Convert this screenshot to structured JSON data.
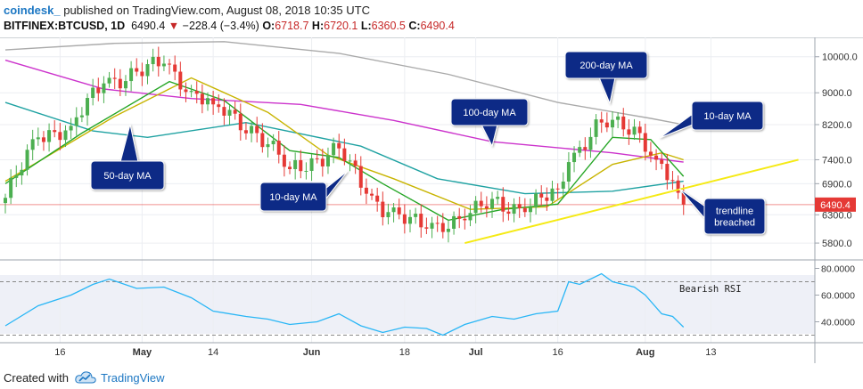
{
  "header": {
    "brand": "coindesk_",
    "published": "published on TradingView.com, August 08, 2018 10:35 UTC",
    "symbol": "BITFINEX:BTCUSD, 1D",
    "last": "6490.4",
    "change": "−228.4 (−3.4%)",
    "o_label": "O:",
    "o_value": "6718.7",
    "h_label": "H:",
    "h_value": "6720.1",
    "l_label": "L:",
    "l_value": "6360.5",
    "c_label": "C:",
    "c_value": "6490.4"
  },
  "footer": {
    "created_with": "Created with",
    "tradingview": "TradingView"
  },
  "colors": {
    "up": "#4caf50",
    "down": "#e53935",
    "ma10": "#26a626",
    "ma20": "#c8b400",
    "ma50": "#1fa2a2",
    "ma100": "#cc33cc",
    "ma200": "#aaaaaa",
    "trendline": "#f5ea14",
    "rsi": "#29b6f6",
    "annotation": "#0d2a86",
    "price_tag": "#e53935"
  },
  "chart_data": [
    {
      "type": "candlestick",
      "symbol": "BITFINEX:BTCUSD",
      "interval": "1D",
      "y_scale": "log",
      "ylim": [
        5550,
        10500
      ],
      "y_ticks": [
        "10000.0",
        "9000.0",
        "8200.0",
        "7400.0",
        "6900.0",
        "6300.0",
        "5800.0"
      ],
      "x_ticks": [
        "16",
        "May",
        "14",
        "Jun",
        "18",
        "Jul",
        "16",
        "Aug",
        "13"
      ],
      "last_price_label": "6490.4",
      "key_points": [
        {
          "date": "2018-04-06",
          "close": 6620
        },
        {
          "date": "2018-04-12",
          "close": 7900
        },
        {
          "date": "2018-04-18",
          "close": 8170
        },
        {
          "date": "2018-04-24",
          "close": 9250
        },
        {
          "date": "2018-05-05",
          "close": 9800
        },
        {
          "date": "2018-05-10",
          "close": 9050
        },
        {
          "date": "2018-05-14",
          "close": 8700
        },
        {
          "date": "2018-05-22",
          "close": 8000
        },
        {
          "date": "2018-05-28",
          "close": 7200
        },
        {
          "date": "2018-06-04",
          "close": 7500
        },
        {
          "date": "2018-06-06",
          "close": 7650
        },
        {
          "date": "2018-06-11",
          "close": 6700
        },
        {
          "date": "2018-06-15",
          "close": 6350
        },
        {
          "date": "2018-06-22",
          "close": 6050
        },
        {
          "date": "2018-06-24",
          "close": 6150
        },
        {
          "date": "2018-06-29",
          "close": 6200
        },
        {
          "date": "2018-07-04",
          "close": 6600
        },
        {
          "date": "2018-07-10",
          "close": 6350
        },
        {
          "date": "2018-07-16",
          "close": 6800
        },
        {
          "date": "2018-07-18",
          "close": 7350
        },
        {
          "date": "2018-07-24",
          "close": 8250
        },
        {
          "date": "2018-07-30",
          "close": 8150
        },
        {
          "date": "2018-08-03",
          "close": 7400
        },
        {
          "date": "2018-08-07",
          "close": 6718.7
        },
        {
          "date": "2018-08-08",
          "close": 6490.4
        }
      ],
      "moving_averages": [
        {
          "name": "10-day MA",
          "points": [
            [
              "2018-04-06",
              6900
            ],
            [
              "2018-04-20",
              8000
            ],
            [
              "2018-05-06",
              9300
            ],
            [
              "2018-05-16",
              8800
            ],
            [
              "2018-05-28",
              7600
            ],
            [
              "2018-06-06",
              7450
            ],
            [
              "2018-06-14",
              6900
            ],
            [
              "2018-06-26",
              6200
            ],
            [
              "2018-07-06",
              6400
            ],
            [
              "2018-07-16",
              6500
            ],
            [
              "2018-07-26",
              7900
            ],
            [
              "2018-08-02",
              7850
            ],
            [
              "2018-08-08",
              7050
            ]
          ]
        },
        {
          "name": "20-day MA",
          "points": [
            [
              "2018-04-06",
              6950
            ],
            [
              "2018-04-26",
              8400
            ],
            [
              "2018-05-10",
              9400
            ],
            [
              "2018-05-24",
              8500
            ],
            [
              "2018-06-04",
              7500
            ],
            [
              "2018-06-16",
              7000
            ],
            [
              "2018-06-30",
              6400
            ],
            [
              "2018-07-14",
              6450
            ],
            [
              "2018-07-26",
              7300
            ],
            [
              "2018-08-04",
              7550
            ],
            [
              "2018-08-08",
              7400
            ]
          ]
        },
        {
          "name": "50-day MA",
          "points": [
            [
              "2018-04-06",
              8750
            ],
            [
              "2018-04-22",
              8050
            ],
            [
              "2018-05-02",
              7900
            ],
            [
              "2018-05-20",
              8250
            ],
            [
              "2018-06-10",
              7700
            ],
            [
              "2018-06-24",
              7000
            ],
            [
              "2018-07-10",
              6700
            ],
            [
              "2018-07-26",
              6750
            ],
            [
              "2018-08-08",
              6950
            ]
          ]
        },
        {
          "name": "100-day MA",
          "points": [
            [
              "2018-04-06",
              9900
            ],
            [
              "2018-04-24",
              9100
            ],
            [
              "2018-05-10",
              8850
            ],
            [
              "2018-05-30",
              8700
            ],
            [
              "2018-06-16",
              8300
            ],
            [
              "2018-07-04",
              7800
            ],
            [
              "2018-07-26",
              7550
            ],
            [
              "2018-08-08",
              7350
            ]
          ]
        },
        {
          "name": "200-day MA",
          "points": [
            [
              "2018-04-06",
              10200
            ],
            [
              "2018-04-26",
              10400
            ],
            [
              "2018-05-16",
              10450
            ],
            [
              "2018-06-06",
              10100
            ],
            [
              "2018-06-26",
              9500
            ],
            [
              "2018-07-16",
              8750
            ],
            [
              "2018-08-02",
              8350
            ],
            [
              "2018-08-08",
              8200
            ]
          ]
        }
      ],
      "trendline": [
        [
          "2018-06-29",
          5800
        ],
        [
          "2018-08-29",
          7400
        ]
      ],
      "annotations": [
        {
          "text": "200-day MA"
        },
        {
          "text": "100-day MA"
        },
        {
          "text": "10-day MA"
        },
        {
          "text": "50-day MA"
        },
        {
          "text": "10-day MA"
        },
        {
          "text": "trendline breached"
        }
      ]
    },
    {
      "type": "line",
      "name": "RSI",
      "ylim": [
        25,
        85
      ],
      "y_ticks": [
        "80.0000",
        "60.0000",
        "40.0000"
      ],
      "levels": [
        70,
        30
      ],
      "annotation": "Bearish RSI",
      "points": [
        [
          "2018-04-06",
          37
        ],
        [
          "2018-04-12",
          52
        ],
        [
          "2018-04-18",
          60
        ],
        [
          "2018-04-22",
          68
        ],
        [
          "2018-04-25",
          72
        ],
        [
          "2018-04-30",
          65
        ],
        [
          "2018-05-05",
          66
        ],
        [
          "2018-05-10",
          58
        ],
        [
          "2018-05-14",
          48
        ],
        [
          "2018-05-20",
          44
        ],
        [
          "2018-05-24",
          42
        ],
        [
          "2018-05-28",
          38
        ],
        [
          "2018-06-02",
          40
        ],
        [
          "2018-06-06",
          46
        ],
        [
          "2018-06-10",
          37
        ],
        [
          "2018-06-14",
          32
        ],
        [
          "2018-06-18",
          36
        ],
        [
          "2018-06-22",
          35
        ],
        [
          "2018-06-25",
          30
        ],
        [
          "2018-06-29",
          38
        ],
        [
          "2018-07-04",
          44
        ],
        [
          "2018-07-08",
          42
        ],
        [
          "2018-07-12",
          46
        ],
        [
          "2018-07-16",
          48
        ],
        [
          "2018-07-18",
          70
        ],
        [
          "2018-07-20",
          68
        ],
        [
          "2018-07-24",
          76
        ],
        [
          "2018-07-26",
          70
        ],
        [
          "2018-07-30",
          66
        ],
        [
          "2018-08-01",
          60
        ],
        [
          "2018-08-04",
          46
        ],
        [
          "2018-08-06",
          44
        ],
        [
          "2018-08-08",
          36
        ]
      ]
    }
  ]
}
